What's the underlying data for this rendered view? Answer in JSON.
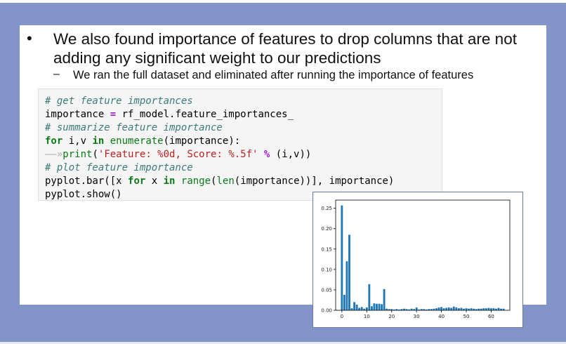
{
  "slide": {
    "bullet_symbol": "•",
    "bullet_text": "We also found importance of features to drop columns that are not adding any significant weight to our predictions",
    "sub_dash": "–",
    "sub_text": "We ran the full dataset and eliminated after running the importance of features"
  },
  "code": {
    "line1": "# get feature importances",
    "line2_a": "importance ",
    "line2_op": "=",
    "line2_b": " rf_model.feature_importances_",
    "line3": "# summarize feature importance",
    "line4_kw1": "for",
    "line4_a": " i,v ",
    "line4_kw2": "in",
    "line4_fn": " enumerate",
    "line4_b": "(importance):",
    "line5_tab": "——»",
    "line5_fn": "print",
    "line5_a": "(",
    "line5_str": "'Feature: %0d, Score: %.5f'",
    "line5_b": " ",
    "line5_op": "%",
    "line5_c": " (i,v))",
    "line6": "# plot feature importance",
    "line7_a": "pyplot.bar([x ",
    "line7_kw1": "for",
    "line7_b": " x ",
    "line7_kw2": "in",
    "line7_fn1": " range",
    "line7_c": "(",
    "line7_fn2": "len",
    "line7_d": "(importance))], importance)",
    "line8": "pyplot.show()"
  },
  "chart_data": {
    "type": "bar",
    "bar_color": "#1f77b4",
    "x": [
      0,
      1,
      2,
      3,
      4,
      5,
      6,
      7,
      8,
      9,
      10,
      11,
      12,
      13,
      14,
      15,
      16,
      17,
      18,
      19,
      20,
      21,
      22,
      23,
      24,
      25,
      26,
      27,
      28,
      29,
      30,
      31,
      32,
      33,
      34,
      35,
      36,
      37,
      38,
      39,
      40,
      41,
      42,
      43,
      44,
      45,
      46,
      47,
      48,
      49,
      50,
      51,
      52,
      53,
      54,
      55,
      56,
      57,
      58,
      59,
      60,
      61,
      62,
      63,
      64,
      65
    ],
    "values": [
      0.257,
      0.038,
      0.12,
      0.185,
      0.005,
      0.02,
      0.014,
      0.006,
      0.008,
      0.004,
      0.007,
      0.064,
      0.01,
      0.017,
      0.016,
      0.016,
      0.015,
      0.052,
      0.004,
      0.003,
      0.003,
      0.002,
      0.003,
      0.002,
      0.003,
      0.004,
      0.003,
      0.002,
      0.004,
      0.003,
      0.007,
      0.002,
      0.003,
      0.003,
      0.002,
      0.003,
      0.003,
      0.004,
      0.005,
      0.007,
      0.008,
      0.005,
      0.006,
      0.007,
      0.006,
      0.009,
      0.007,
      0.005,
      0.006,
      0.004,
      0.005,
      0.004,
      0.005,
      0.004,
      0.003,
      0.004,
      0.004,
      0.005,
      0.005,
      0.006,
      0.005,
      0.005,
      0.004,
      0.006,
      0.004,
      0.004
    ],
    "xlim": [
      -2.5,
      67.5
    ],
    "ylim": [
      0,
      0.27
    ],
    "xticks": [
      0,
      10,
      20,
      30,
      40,
      50,
      60
    ],
    "yticks": [
      0.0,
      0.05,
      0.1,
      0.15,
      0.2,
      0.25
    ],
    "xtick_labels": [
      "0",
      "10",
      "20",
      "30",
      "40",
      "50",
      "60"
    ],
    "ytick_labels": [
      "0.00",
      "0.05",
      "0.10",
      "0.15",
      "0.20",
      "0.25"
    ],
    "title": "",
    "xlabel": "",
    "ylabel": "",
    "grid": false
  }
}
